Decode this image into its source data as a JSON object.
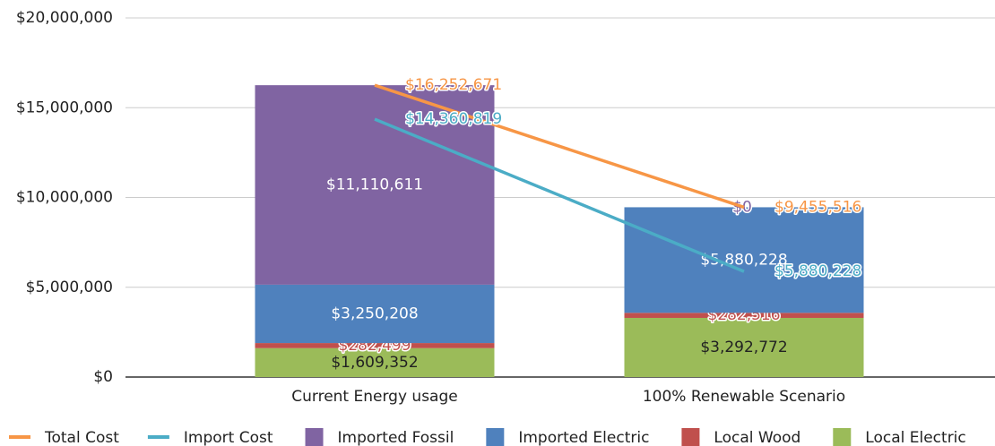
{
  "chart_data": {
    "type": "bar",
    "stacked": true,
    "categories": [
      "Current Energy usage",
      "100% Renewable Scenario"
    ],
    "ylim": [
      0,
      20000000
    ],
    "yticks": [
      {
        "value": 0,
        "label": "$0"
      },
      {
        "value": 5000000,
        "label": "$5,000,000"
      },
      {
        "value": 10000000,
        "label": "$10,000,000"
      },
      {
        "value": 15000000,
        "label": "$15,000,000"
      },
      {
        "value": 20000000,
        "label": "$20,000,000"
      }
    ],
    "grid": true,
    "legend": "bottom",
    "series": [
      {
        "name": "Total Cost",
        "type": "line",
        "color": "#f79646",
        "values": [
          16252671,
          9455516
        ],
        "value_labels": [
          "$16,252,671",
          "$9,455,516"
        ]
      },
      {
        "name": "Import Cost",
        "type": "line",
        "color": "#4bacc6",
        "values": [
          14360819,
          5880228
        ],
        "value_labels": [
          "$14,360,819",
          "$5,880,228"
        ]
      },
      {
        "name": "Imported Fossil",
        "type": "bar",
        "color": "#8064a2",
        "values": [
          11110611,
          0
        ],
        "value_labels": [
          "$11,110,611",
          "$0"
        ]
      },
      {
        "name": "Imported Electric",
        "type": "bar",
        "color": "#4f81bd",
        "values": [
          3250208,
          5880228
        ],
        "value_labels": [
          "$3,250,208",
          "$5,880,228"
        ]
      },
      {
        "name": "Local Wood",
        "type": "bar",
        "color": "#c0504d",
        "values": [
          282499,
          282516
        ],
        "value_labels": [
          "$282,499",
          "$282,516"
        ]
      },
      {
        "name": "Local Electric",
        "type": "bar",
        "color": "#9bbb59",
        "values": [
          1609352,
          3292772
        ],
        "value_labels": [
          "$1,609,352",
          "$3,292,772"
        ]
      }
    ]
  }
}
